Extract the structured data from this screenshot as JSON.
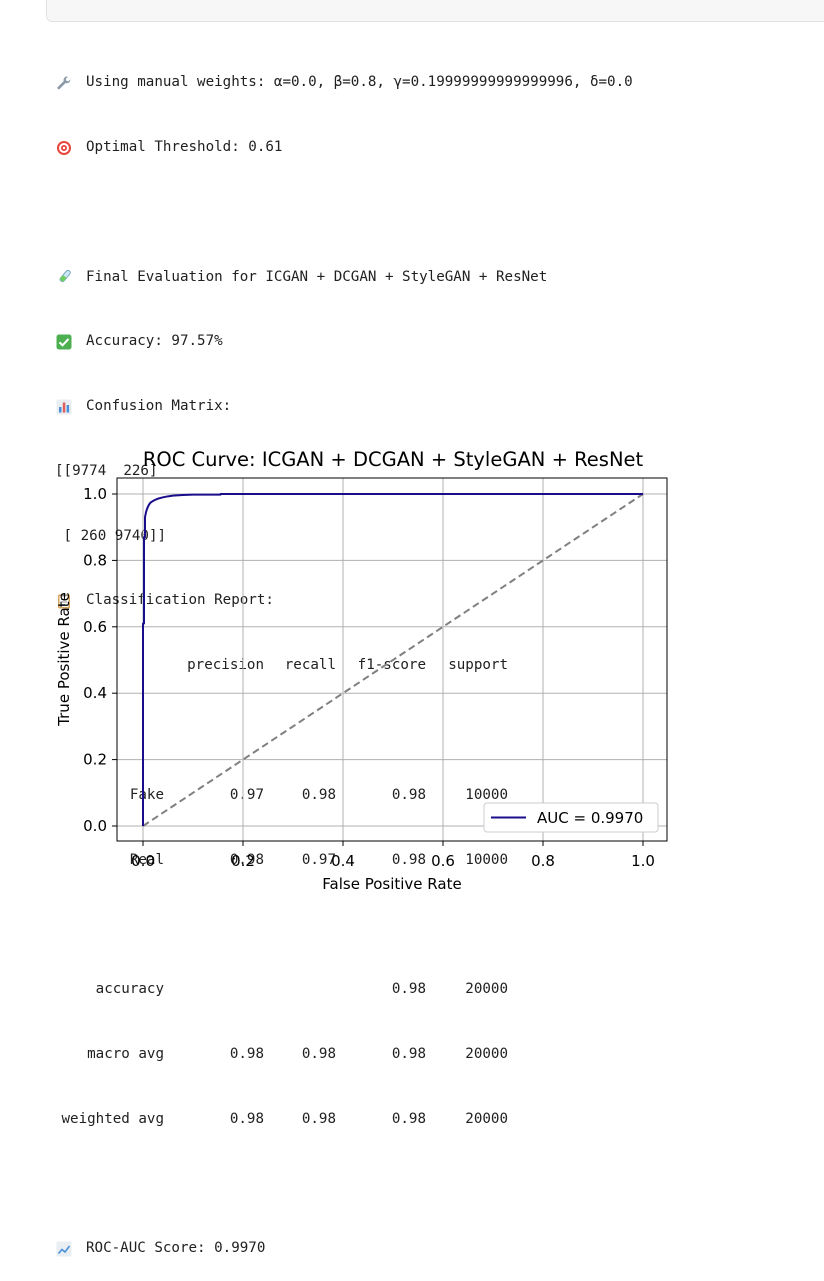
{
  "output": {
    "weights_icon": "wrench-icon",
    "weights_line": "Using manual weights: α=0.0, β=0.8, γ=0.19999999999999996, δ=0.0",
    "threshold_icon": "target-icon",
    "threshold_line": "Optimal Threshold: 0.61",
    "final_icon": "test-tube-icon",
    "final_line": "Final Evaluation for ICGAN + DCGAN + StyleGAN + ResNet",
    "accuracy_icon": "check-mark-icon",
    "accuracy_line": "Accuracy: 97.57%",
    "confusion_icon": "bar-chart-icon",
    "confusion_line": "Confusion Matrix:",
    "matrix_row_1": "[[9774  226]",
    "matrix_row_2": " [ 260 9740]]",
    "report_icon": "clipboard-icon",
    "report_line": "Classification Report:",
    "report_header": [
      "",
      "precision",
      "recall",
      "f1-score",
      "support"
    ],
    "report_rows": [
      [
        "Fake",
        "0.97",
        "0.98",
        "0.98",
        "10000"
      ],
      [
        "Real",
        "0.98",
        "0.97",
        "0.98",
        "10000"
      ]
    ],
    "report_summary": [
      [
        "accuracy",
        "",
        "",
        "0.98",
        "20000"
      ],
      [
        "macro avg",
        "0.98",
        "0.98",
        "0.98",
        "20000"
      ],
      [
        "weighted avg",
        "0.98",
        "0.98",
        "0.98",
        "20000"
      ]
    ],
    "roc_icon": "line-chart-icon",
    "roc_line": "ROC-AUC Score: 0.9970"
  },
  "colors": {
    "roc_line": "#1a0d8c",
    "diagonal": "#808080",
    "grid": "#b0b0b0"
  },
  "chart_data": {
    "type": "line",
    "title": "ROC Curve: ICGAN + DCGAN + StyleGAN + ResNet",
    "xlabel": "False Positive Rate",
    "ylabel": "True Positive Rate",
    "xlim": [
      0.0,
      1.0
    ],
    "ylim": [
      0.0,
      1.0
    ],
    "xticks": [
      "0.0",
      "0.2",
      "0.4",
      "0.6",
      "0.8",
      "1.0"
    ],
    "yticks": [
      "0.0",
      "0.2",
      "0.4",
      "0.6",
      "0.8",
      "1.0"
    ],
    "grid": true,
    "legend_position": "lower right",
    "series": [
      {
        "name": "AUC = 0.9970",
        "x": [
          0.0,
          0.0,
          0.002,
          0.002,
          0.004,
          0.004,
          0.006,
          0.008,
          0.01,
          0.012,
          0.015,
          0.02,
          0.025,
          0.03,
          0.04,
          0.05,
          0.06,
          0.08,
          0.1,
          0.155,
          0.155,
          1.0
        ],
        "y": [
          0.0,
          0.61,
          0.61,
          0.87,
          0.87,
          0.93,
          0.945,
          0.955,
          0.962,
          0.968,
          0.974,
          0.979,
          0.983,
          0.986,
          0.99,
          0.993,
          0.995,
          0.997,
          0.998,
          0.998,
          1.0,
          1.0
        ]
      },
      {
        "name": "",
        "x": [
          0.0,
          1.0
        ],
        "y": [
          0.0,
          1.0
        ],
        "style": "dashed"
      }
    ]
  }
}
